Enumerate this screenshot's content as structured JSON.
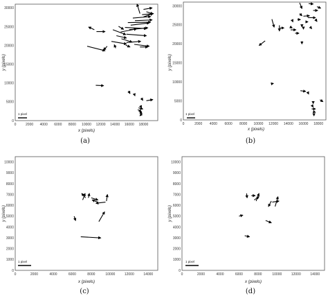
{
  "chart_data": [
    {
      "panel": "(a)",
      "type": "quiver",
      "xlabel": "x (pixels)",
      "ylabel": "y (pixels)",
      "xlim": [
        0,
        20000
      ],
      "ylim": [
        0,
        31000
      ],
      "xticks": [
        0,
        2000,
        4000,
        6000,
        8000,
        10000,
        12000,
        14000,
        16000,
        18000
      ],
      "yticks": [
        0,
        5000,
        10000,
        15000,
        20000,
        25000,
        30000
      ],
      "scale_label": "1 pixel",
      "vectors": [
        {
          "x": 17500,
          "y": 28500,
          "dx": -400,
          "dy": 2500
        },
        {
          "x": 18000,
          "y": 29600,
          "dx": 1200,
          "dy": 400
        },
        {
          "x": 18400,
          "y": 29000,
          "dx": 900,
          "dy": -600
        },
        {
          "x": 17800,
          "y": 28200,
          "dx": 1600,
          "dy": 300
        },
        {
          "x": 18000,
          "y": 27600,
          "dx": 1300,
          "dy": 900
        },
        {
          "x": 16500,
          "y": 27300,
          "dx": 2500,
          "dy": 400
        },
        {
          "x": 16800,
          "y": 26600,
          "dx": 2400,
          "dy": 200
        },
        {
          "x": 15800,
          "y": 26100,
          "dx": 3200,
          "dy": 100
        },
        {
          "x": 16200,
          "y": 25400,
          "dx": 2600,
          "dy": 600
        },
        {
          "x": 15400,
          "y": 24800,
          "dx": 3000,
          "dy": -300
        },
        {
          "x": 16000,
          "y": 24200,
          "dx": 2600,
          "dy": 500
        },
        {
          "x": 14800,
          "y": 23600,
          "dx": 2200,
          "dy": 800
        },
        {
          "x": 15600,
          "y": 23000,
          "dx": 2800,
          "dy": -400
        },
        {
          "x": 14200,
          "y": 22600,
          "dx": 1400,
          "dy": -600
        },
        {
          "x": 13700,
          "y": 24200,
          "dx": 1800,
          "dy": -1300
        },
        {
          "x": 14500,
          "y": 25100,
          "dx": 700,
          "dy": -800
        },
        {
          "x": 14900,
          "y": 21800,
          "dx": 1500,
          "dy": -900
        },
        {
          "x": 13500,
          "y": 21100,
          "dx": 2100,
          "dy": -700
        },
        {
          "x": 15600,
          "y": 20800,
          "dx": 2000,
          "dy": 300
        },
        {
          "x": 16700,
          "y": 20300,
          "dx": 2100,
          "dy": -500
        },
        {
          "x": 17500,
          "y": 19600,
          "dx": 1100,
          "dy": 0
        },
        {
          "x": 15500,
          "y": 20100,
          "dx": 600,
          "dy": -500
        },
        {
          "x": 12900,
          "y": 19800,
          "dx": -500,
          "dy": -1000
        },
        {
          "x": 14100,
          "y": 19300,
          "dx": -200,
          "dy": 900
        },
        {
          "x": 11100,
          "y": 24200,
          "dx": -800,
          "dy": 700
        },
        {
          "x": 11400,
          "y": 23700,
          "dx": 1200,
          "dy": 0
        },
        {
          "x": 10100,
          "y": 19800,
          "dx": 2500,
          "dy": -1200
        },
        {
          "x": 11300,
          "y": 9400,
          "dx": 1100,
          "dy": -100
        },
        {
          "x": 15900,
          "y": 7900,
          "dx": 200,
          "dy": -700
        },
        {
          "x": 16700,
          "y": 7100,
          "dx": 100,
          "dy": -500
        },
        {
          "x": 18400,
          "y": 5300,
          "dx": 900,
          "dy": 300
        },
        {
          "x": 17700,
          "y": 6000,
          "dx": 200,
          "dy": -600
        },
        {
          "x": 17600,
          "y": 3900,
          "dx": 100,
          "dy": -500
        },
        {
          "x": 17300,
          "y": 3400,
          "dx": 600,
          "dy": -300
        },
        {
          "x": 17200,
          "y": 2900,
          "dx": 500,
          "dy": -500
        },
        {
          "x": 17500,
          "y": 2300,
          "dx": 300,
          "dy": -400
        },
        {
          "x": 17700,
          "y": 1700,
          "dx": -200,
          "dy": -400
        }
      ]
    },
    {
      "panel": "(b)",
      "type": "quiver",
      "xlabel": "x (pixels)",
      "ylabel": "y (pixels)",
      "xlim": [
        0,
        19000
      ],
      "ylim": [
        0,
        31000
      ],
      "xticks": [
        0,
        2000,
        4000,
        6000,
        8000,
        10000,
        12000,
        14000,
        16000,
        18000
      ],
      "yticks": [
        0,
        5000,
        10000,
        15000,
        20000,
        25000,
        30000
      ],
      "scale_label": "1 pixel",
      "vectors": [
        {
          "x": 15500,
          "y": 30800,
          "dx": 300,
          "dy": -1500
        },
        {
          "x": 16700,
          "y": 30600,
          "dx": 600,
          "dy": -100
        },
        {
          "x": 17800,
          "y": 29800,
          "dx": 500,
          "dy": -400
        },
        {
          "x": 17300,
          "y": 28800,
          "dx": 600,
          "dy": 0
        },
        {
          "x": 15500,
          "y": 28000,
          "dx": 300,
          "dy": -600
        },
        {
          "x": 16000,
          "y": 27300,
          "dx": 800,
          "dy": 100
        },
        {
          "x": 16600,
          "y": 26900,
          "dx": 1000,
          "dy": 0
        },
        {
          "x": 14500,
          "y": 26300,
          "dx": 100,
          "dy": -500
        },
        {
          "x": 15200,
          "y": 26400,
          "dx": 400,
          "dy": 0
        },
        {
          "x": 17600,
          "y": 26500,
          "dx": 200,
          "dy": -600
        },
        {
          "x": 16300,
          "y": 25800,
          "dx": 300,
          "dy": 0
        },
        {
          "x": 15800,
          "y": 25100,
          "dx": 0,
          "dy": -600
        },
        {
          "x": 16900,
          "y": 24500,
          "dx": 200,
          "dy": -500
        },
        {
          "x": 12800,
          "y": 24900,
          "dx": 0,
          "dy": -1500
        },
        {
          "x": 11800,
          "y": 26500,
          "dx": 300,
          "dy": -2100
        },
        {
          "x": 12900,
          "y": 24200,
          "dx": 500,
          "dy": 0
        },
        {
          "x": 14300,
          "y": 23700,
          "dx": 700,
          "dy": 0
        },
        {
          "x": 14200,
          "y": 24500,
          "dx": 300,
          "dy": -300
        },
        {
          "x": 16000,
          "y": 24300,
          "dx": 0,
          "dy": -400
        },
        {
          "x": 14900,
          "y": 22800,
          "dx": 500,
          "dy": 0
        },
        {
          "x": 10900,
          "y": 20800,
          "dx": -800,
          "dy": -1200
        },
        {
          "x": 15800,
          "y": 20700,
          "dx": 0,
          "dy": -700
        },
        {
          "x": 11700,
          "y": 9500,
          "dx": 300,
          "dy": 100
        },
        {
          "x": 15600,
          "y": 7700,
          "dx": 700,
          "dy": -200
        },
        {
          "x": 16600,
          "y": 7200,
          "dx": 100,
          "dy": -400
        },
        {
          "x": 18200,
          "y": 5300,
          "dx": 400,
          "dy": -500
        },
        {
          "x": 17300,
          "y": 4700,
          "dx": 0,
          "dy": -400
        },
        {
          "x": 17200,
          "y": 3700,
          "dx": 100,
          "dy": -300
        },
        {
          "x": 17100,
          "y": 2900,
          "dx": 500,
          "dy": 0
        },
        {
          "x": 17300,
          "y": 2200,
          "dx": 300,
          "dy": -200
        },
        {
          "x": 17400,
          "y": 1400,
          "dx": 0,
          "dy": -300
        }
      ]
    },
    {
      "panel": "(c)",
      "type": "quiver",
      "xlabel": "x (pixels)",
      "ylabel": "y (pixels)",
      "xlim": [
        0,
        15000
      ],
      "ylim": [
        0,
        10500
      ],
      "xticks": [
        0,
        2000,
        4000,
        6000,
        8000,
        10000,
        12000,
        14000
      ],
      "yticks": [
        0,
        1000,
        2000,
        3000,
        4000,
        5000,
        6000,
        7000,
        8000,
        9000,
        10000
      ],
      "scale_label": "1 pixel",
      "vectors": [
        {
          "x": 7100,
          "y": 6500,
          "dx": 250,
          "dy": 600
        },
        {
          "x": 7400,
          "y": 6700,
          "dx": -400,
          "dy": 400
        },
        {
          "x": 7700,
          "y": 6700,
          "dx": 100,
          "dy": 400
        },
        {
          "x": 8000,
          "y": 6700,
          "dx": 700,
          "dy": -200
        },
        {
          "x": 8700,
          "y": 6300,
          "dx": -600,
          "dy": 200
        },
        {
          "x": 9600,
          "y": 6400,
          "dx": 100,
          "dy": 600
        },
        {
          "x": 9500,
          "y": 6300,
          "dx": -1000,
          "dy": -100
        },
        {
          "x": 6200,
          "y": 5000,
          "dx": 150,
          "dy": -400
        },
        {
          "x": 8800,
          "y": 4500,
          "dx": 600,
          "dy": 900
        },
        {
          "x": 6900,
          "y": 3100,
          "dx": 2100,
          "dy": -100
        }
      ]
    },
    {
      "panel": "(d)",
      "type": "quiver",
      "xlabel": "x (pixels)",
      "ylabel": "y (pixels)",
      "xlim": [
        0,
        15000
      ],
      "ylim": [
        0,
        10500
      ],
      "xticks": [
        0,
        2000,
        4000,
        6000,
        8000,
        10000,
        12000,
        14000
      ],
      "yticks": [
        0,
        1000,
        2000,
        3000,
        4000,
        5000,
        6000,
        7000,
        8000,
        9000,
        10000
      ],
      "scale_label": "1 pixel",
      "vectors": [
        {
          "x": 6800,
          "y": 7100,
          "dx": 50,
          "dy": -400
        },
        {
          "x": 7300,
          "y": 6900,
          "dx": 400,
          "dy": 0
        },
        {
          "x": 7600,
          "y": 6500,
          "dx": 500,
          "dy": 300
        },
        {
          "x": 7800,
          "y": 6400,
          "dx": 300,
          "dy": 700
        },
        {
          "x": 9500,
          "y": 6300,
          "dx": 700,
          "dy": 100
        },
        {
          "x": 9800,
          "y": 5900,
          "dx": 300,
          "dy": 900
        },
        {
          "x": 9400,
          "y": 6400,
          "dx": -300,
          "dy": -500
        },
        {
          "x": 6000,
          "y": 5000,
          "dx": 400,
          "dy": 100
        },
        {
          "x": 8800,
          "y": 4600,
          "dx": 600,
          "dy": -200
        },
        {
          "x": 6600,
          "y": 3200,
          "dx": 500,
          "dy": -100
        }
      ]
    }
  ]
}
